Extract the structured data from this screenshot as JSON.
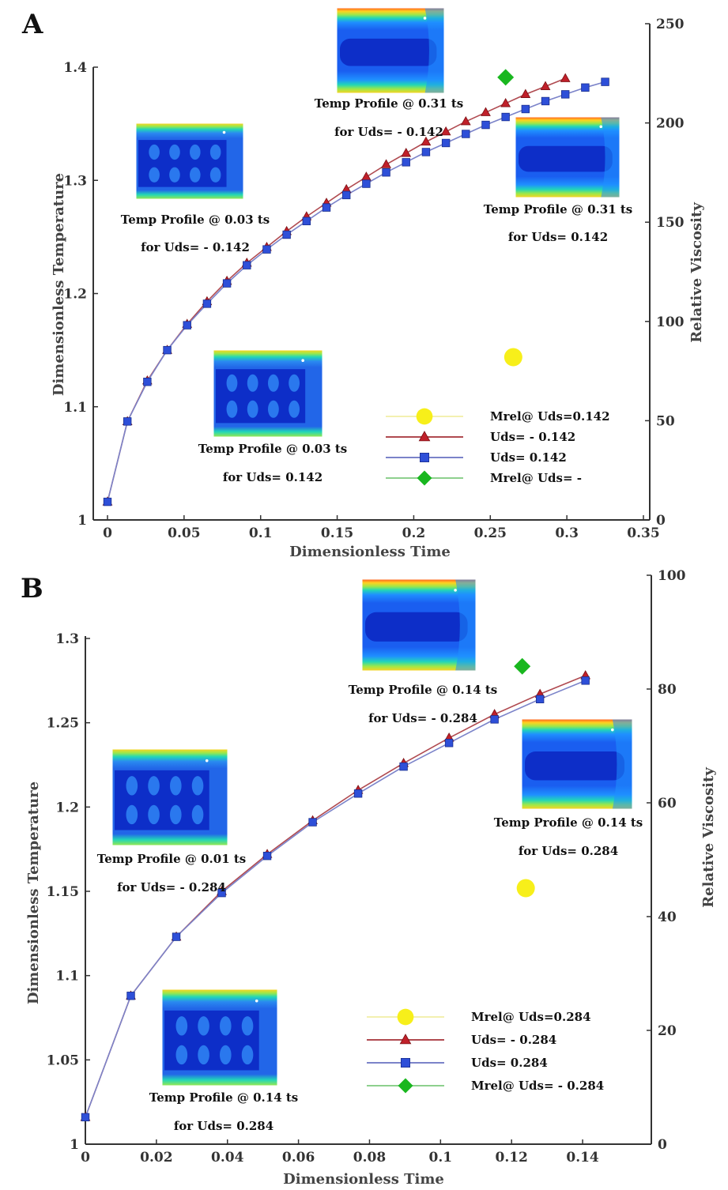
{
  "chart_data": [
    {
      "panel": "A",
      "type": "line",
      "xlabel": "Dimensionless Time",
      "ylabel": "Dimensionless Temperature",
      "y2label": "Relative Viscosity",
      "xlim": [
        0,
        0.35
      ],
      "ylim": [
        1,
        1.4
      ],
      "y2lim": [
        0,
        250
      ],
      "xticks": [
        "0",
        "0.05",
        "0.1",
        "0.15",
        "0.2",
        "0.25",
        "0.3",
        "0.35"
      ],
      "yticks": [
        "1",
        "1.1",
        "1.2",
        "1.3",
        "1.4"
      ],
      "y2ticks": [
        "0",
        "50",
        "100",
        "150",
        "200",
        "250"
      ],
      "series": [
        {
          "name": "Uds= - 0.142",
          "marker": "triangle",
          "color": "#c0202a",
          "line": "#b04a50",
          "x": [
            0.0,
            0.013,
            0.026,
            0.039,
            0.052,
            0.065,
            0.078,
            0.091,
            0.104,
            0.117,
            0.13,
            0.143,
            0.156,
            0.169,
            0.182,
            0.195,
            0.208,
            0.221,
            0.234,
            0.247,
            0.26,
            0.273,
            0.286,
            0.299
          ],
          "y": [
            1.016,
            1.087,
            1.123,
            1.15,
            1.173,
            1.193,
            1.211,
            1.227,
            1.241,
            1.255,
            1.268,
            1.28,
            1.292,
            1.303,
            1.314,
            1.324,
            1.334,
            1.343,
            1.352,
            1.36,
            1.368,
            1.376,
            1.383,
            1.39
          ]
        },
        {
          "name": "Uds= 0.142",
          "marker": "square",
          "color": "#2e4fd8",
          "line": "#7b83c9",
          "x": [
            0.0,
            0.013,
            0.026,
            0.039,
            0.052,
            0.065,
            0.078,
            0.091,
            0.104,
            0.117,
            0.13,
            0.143,
            0.156,
            0.169,
            0.182,
            0.195,
            0.208,
            0.221,
            0.234,
            0.247,
            0.26,
            0.273,
            0.286,
            0.299,
            0.312,
            0.325
          ],
          "y": [
            1.016,
            1.087,
            1.122,
            1.15,
            1.172,
            1.191,
            1.209,
            1.225,
            1.239,
            1.252,
            1.264,
            1.276,
            1.287,
            1.297,
            1.307,
            1.316,
            1.325,
            1.333,
            1.341,
            1.349,
            1.356,
            1.363,
            1.37,
            1.376,
            1.382,
            1.387
          ]
        },
        {
          "name": "Mrel@ Uds=0.142",
          "marker": "circle",
          "color": "#f7ef1a",
          "line": "#f3f0b0",
          "axis": "right",
          "x": [
            0.265
          ],
          "y": [
            82
          ]
        },
        {
          "name": "Mrel@ Uds= -",
          "marker": "diamond",
          "color": "#19b71f",
          "line": "#8ed08e",
          "axis": "right",
          "x": [
            0.26
          ],
          "y": [
            223
          ]
        }
      ],
      "insets": [
        {
          "caption1": "Temp Profile @ 0.31 ts",
          "caption2": "for Uds= - 0.142",
          "pattern": "band"
        },
        {
          "caption1": "Temp Profile @ 0.03 ts",
          "caption2": "for Uds= - 0.142",
          "pattern": "cells"
        },
        {
          "caption1": "Temp Profile @ 0.31 ts",
          "caption2": "for Uds= 0.142",
          "pattern": "band"
        },
        {
          "caption1": "Temp Profile @ 0.03 ts",
          "caption2": "for Uds= 0.142",
          "pattern": "cells"
        }
      ],
      "legend_position": "lower-right"
    },
    {
      "panel": "B",
      "type": "line",
      "xlabel": "Dimensionless Time",
      "ylabel": "Dimensionless Temperature",
      "y2label": "Relative Viscosity",
      "xlim": [
        0,
        0.15
      ],
      "ylim": [
        1,
        1.3
      ],
      "y2lim": [
        0,
        100
      ],
      "xticks": [
        "0",
        "0.02",
        "0.04",
        "0.06",
        "0.08",
        "0.1",
        "0.12",
        "0.14"
      ],
      "yticks": [
        "1",
        "1.05",
        "1.1",
        "1.15",
        "1.2",
        "1.25",
        "1.3"
      ],
      "y2ticks": [
        "0",
        "20",
        "40",
        "60",
        "80",
        "100"
      ],
      "series": [
        {
          "name": "Uds= - 0.284",
          "marker": "triangle",
          "color": "#c0202a",
          "line": "#b04a50",
          "x": [
            0.0,
            0.0128,
            0.0256,
            0.0384,
            0.0512,
            0.064,
            0.0768,
            0.0896,
            0.1024,
            0.1152,
            0.128,
            0.1408
          ],
          "y": [
            1.016,
            1.088,
            1.123,
            1.15,
            1.172,
            1.192,
            1.21,
            1.226,
            1.241,
            1.255,
            1.267,
            1.278
          ]
        },
        {
          "name": "Uds= 0.284",
          "marker": "square",
          "color": "#2e4fd8",
          "line": "#7b83c9",
          "x": [
            0.0,
            0.0128,
            0.0256,
            0.0384,
            0.0512,
            0.064,
            0.0768,
            0.0896,
            0.1024,
            0.1152,
            0.128,
            0.1408
          ],
          "y": [
            1.016,
            1.088,
            1.123,
            1.149,
            1.171,
            1.191,
            1.208,
            1.224,
            1.238,
            1.252,
            1.264,
            1.275
          ]
        },
        {
          "name": "Mrel@ Uds=0.284",
          "marker": "circle",
          "color": "#f7ef1a",
          "line": "#f3f0b0",
          "axis": "right",
          "x": [
            0.124
          ],
          "y": [
            45
          ]
        },
        {
          "name": "Mrel@ Uds= - 0.284",
          "marker": "diamond",
          "color": "#19b71f",
          "line": "#8ed08e",
          "axis": "right",
          "x": [
            0.123
          ],
          "y": [
            84
          ]
        }
      ],
      "insets": [
        {
          "caption1": "Temp Profile @ 0.14 ts",
          "caption2": "for Uds= - 0.284",
          "pattern": "band"
        },
        {
          "caption1": "Temp Profile @ 0.01 ts",
          "caption2": "for Uds= - 0.284",
          "pattern": "cells"
        },
        {
          "caption1": "Temp Profile @ 0.14 ts",
          "caption2": "for Uds= 0.284",
          "pattern": "band"
        },
        {
          "caption1": "Temp Profile @ 0.14 ts",
          "caption2": "for Uds= 0.284",
          "pattern": "cells"
        }
      ],
      "legend_position": "lower-right"
    }
  ]
}
